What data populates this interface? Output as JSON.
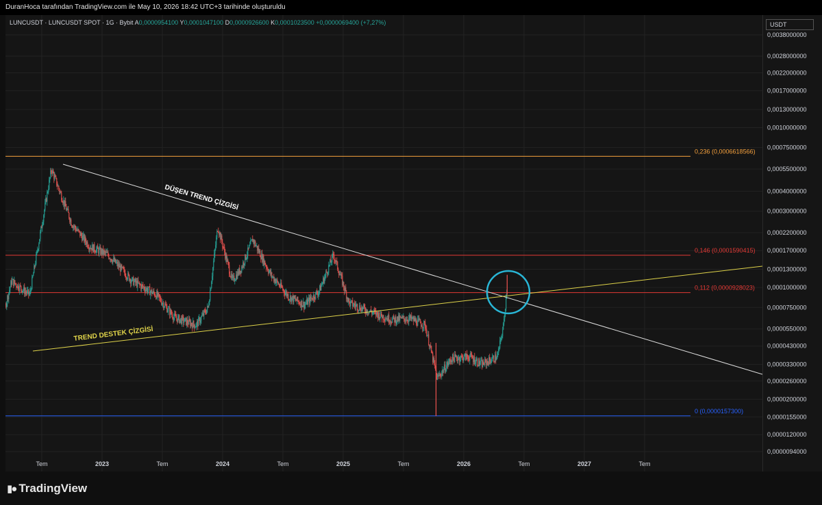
{
  "header": {
    "attribution": "DuranHoca tarafından TradingView.com ile May 10, 2026 18:42 UTC+3 tarihinde oluşturuldu"
  },
  "legend": {
    "symbol": "LUNCUSDT · LUNCUSDT SPOT · 1G · Bybit",
    "open_label": "A",
    "open_value": "0,0000954100",
    "high_label": "Y",
    "high_value": "0,0001047100",
    "low_label": "D",
    "low_value": "0,0000926600",
    "close_label": "K",
    "close_value": "0,0001023500",
    "change": "+0,0000069400 (+7,27%)"
  },
  "price_axis": {
    "currency": "USDT"
  },
  "branding": {
    "logo_text": "TradingView"
  },
  "colors": {
    "up": "#26a69a",
    "down": "#ef5350",
    "fib_236": "#f7a23e",
    "fib_146": "#e53935",
    "fib_112": "#e53935",
    "fib_0": "#2962ff",
    "downtrend_line": "#e0e0e0",
    "support_line": "#e0d44a",
    "circle": "#29b6d6",
    "grid": "#222222"
  },
  "chart_data": {
    "type": "candlestick",
    "scale": "log",
    "x_ticks": [
      "Tem",
      "2023",
      "Tem",
      "2024",
      "Tem",
      "2025",
      "Tem",
      "2026",
      "Tem",
      "2027",
      "Tem"
    ],
    "y_ticks": [
      "0,0038000000",
      "0,0028000000",
      "0,0022000000",
      "0,0017000000",
      "0,0013000000",
      "0,0010000000",
      "0,0007500000",
      "0,0005500000",
      "0,0004000000",
      "0,0003000000",
      "0,0002200000",
      "0,0001700000",
      "0,0001300000",
      "0,0001000000",
      "0,0000750000",
      "0,0000550000",
      "0,0000430000",
      "0,0000330000",
      "0,0000260000",
      "0,0000200000",
      "0,0000155000",
      "0,0000120000",
      "0,0000094000"
    ],
    "y_tick_values": [
      0.0038,
      0.0028,
      0.0022,
      0.0017,
      0.0013,
      0.001,
      0.00075,
      0.00055,
      0.0004,
      0.0003,
      0.00022,
      0.00017,
      0.00013,
      0.0001,
      7.5e-05,
      5.5e-05,
      4.3e-05,
      3.3e-05,
      2.6e-05,
      2e-05,
      1.55e-05,
      1.2e-05,
      9.4e-06
    ],
    "fib_levels": [
      {
        "label": "0,236 (0,0006618566)",
        "value": 0.0006618566,
        "color": "#f7a23e"
      },
      {
        "label": "0,146 (0,0001590415)",
        "value": 0.0001590415,
        "color": "#e53935"
      },
      {
        "label": "0,112 (0,0000928023)",
        "value": 9.28023e-05,
        "color": "#e53935"
      },
      {
        "label": "0 (0,0000157300)",
        "value": 1.573e-05,
        "color": "#2962ff"
      }
    ],
    "annotations": [
      {
        "text": "DÜŞEN TREND ÇİZGİSİ",
        "color": "#ffffff"
      },
      {
        "text": "TREND DESTEK ÇİZGİSİ",
        "color": "#e0d44a"
      }
    ],
    "trend_lines": [
      {
        "name": "downtrend",
        "from": [
          "2022-09",
          0.00058
        ],
        "to": [
          "2027-08",
          2.9e-05
        ]
      },
      {
        "name": "support",
        "from": [
          "2022-06",
          4.1e-05
        ],
        "to": [
          "2027-08",
          0.00014
        ]
      }
    ],
    "price_path_knots": [
      [
        2022.05,
        0.00028
      ],
      [
        2022.08,
        0.00012
      ],
      [
        2022.12,
        4.5e-05
      ],
      [
        2022.25,
        0.00011
      ],
      [
        2022.4,
        9e-05
      ],
      [
        2022.58,
        0.00055
      ],
      [
        2022.75,
        0.00025
      ],
      [
        2022.9,
        0.00018
      ],
      [
        2023.05,
        0.00016
      ],
      [
        2023.25,
        0.00011
      ],
      [
        2023.45,
        9e-05
      ],
      [
        2023.6,
        6.5e-05
      ],
      [
        2023.78,
        5.8e-05
      ],
      [
        2023.88,
        7.5e-05
      ],
      [
        2023.96,
        0.00024
      ],
      [
        2024.08,
        0.00011
      ],
      [
        2024.15,
        0.00013
      ],
      [
        2024.25,
        0.0002
      ],
      [
        2024.4,
        0.00012
      ],
      [
        2024.55,
        8.75e-05
      ],
      [
        2024.68,
        7.8e-05
      ],
      [
        2024.8,
        9.5e-05
      ],
      [
        2024.92,
        0.00016
      ],
      [
        2025.05,
        8e-05
      ],
      [
        2025.2,
        7.2e-05
      ],
      [
        2025.4,
        6.3e-05
      ],
      [
        2025.55,
        6.4e-05
      ],
      [
        2025.68,
        5.8e-05
      ],
      [
        2025.78,
        2.7e-05
      ],
      [
        2025.9,
        3.6e-05
      ],
      [
        2026.05,
        3.7e-05
      ],
      [
        2026.15,
        3.3e-05
      ],
      [
        2026.28,
        3.7e-05
      ],
      [
        2026.33,
        5.8e-05
      ],
      [
        2026.36,
        0.00010235
      ]
    ]
  }
}
